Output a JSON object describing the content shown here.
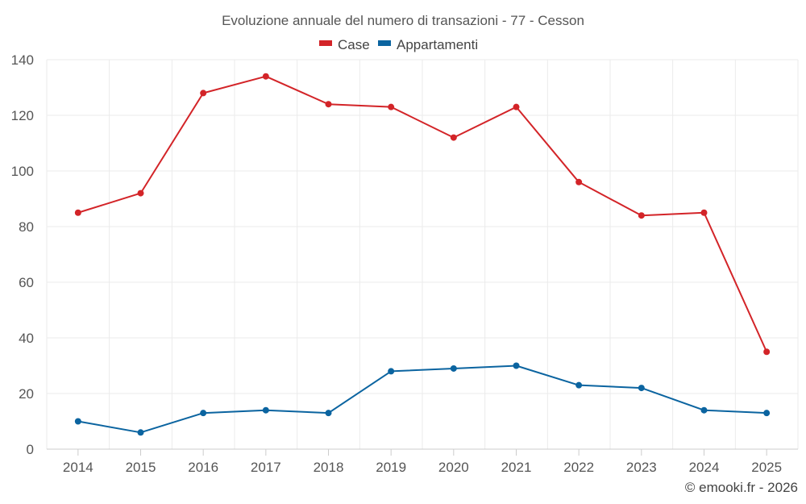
{
  "chart_data": {
    "type": "line",
    "title": "Evoluzione annuale del numero di transazioni - 77 - Cesson",
    "categories": [
      "2014",
      "2015",
      "2016",
      "2017",
      "2018",
      "2019",
      "2020",
      "2021",
      "2022",
      "2023",
      "2024",
      "2025"
    ],
    "series": [
      {
        "name": "Case",
        "color": "#d32428",
        "values": [
          85,
          92,
          128,
          134,
          124,
          123,
          112,
          123,
          96,
          84,
          85,
          35
        ]
      },
      {
        "name": "Appartamenti",
        "color": "#0b64a0",
        "values": [
          10,
          6,
          13,
          14,
          13,
          28,
          29,
          30,
          23,
          22,
          14,
          13
        ]
      }
    ],
    "ylim": [
      0,
      140
    ],
    "yticks": [
      0,
      20,
      40,
      60,
      80,
      100,
      120,
      140
    ],
    "grid": true,
    "legend": "top-center",
    "xlabel": "",
    "ylabel": ""
  },
  "credit": "© emooki.fr - 2026"
}
